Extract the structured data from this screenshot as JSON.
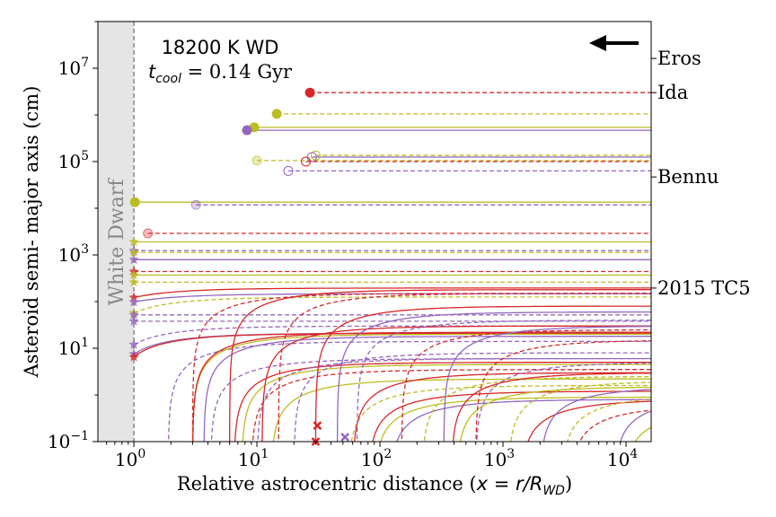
{
  "chart_data": {
    "type": "line",
    "title_line1": "18200 K WD",
    "title_line2_var": "t",
    "title_line2_sub": "cool",
    "title_line2_rest": " = 0.14 Gyr",
    "xlabel_text": "Relative astrocentric distance (",
    "xlabel_math": "x = r/R",
    "xlabel_sub": "WD",
    "xlabel_close": ")",
    "ylabel": "Asteroid semi- major axis  (cm)",
    "xscale": "log",
    "yscale": "log",
    "xlim": [
      0.51,
      16000
    ],
    "ylim": [
      0.1,
      100000000
    ],
    "x_ticks": [
      {
        "exp": "0",
        "v": 1
      },
      {
        "exp": "1",
        "v": 10
      },
      {
        "exp": "2",
        "v": 100
      },
      {
        "exp": "3",
        "v": 1000
      },
      {
        "exp": "4",
        "v": 10000
      }
    ],
    "y_ticks": [
      {
        "exp": "−1",
        "v": 0.1
      },
      {
        "exp": "1",
        "v": 10
      },
      {
        "exp": "3",
        "v": 1000
      },
      {
        "exp": "5",
        "v": 100000
      },
      {
        "exp": "7",
        "v": 10000000
      }
    ],
    "tick_base": "10",
    "shaded_region": {
      "label": "White Dwarf",
      "x_max": 1,
      "color": "#e5e5e5"
    },
    "reference_asteroids": [
      {
        "name": "Eros",
        "a": 16200000
      },
      {
        "name": "Ida",
        "a": 3000000
      },
      {
        "name": "Bennu",
        "a": 46800
      },
      {
        "name": "2015 TC5",
        "a": 195
      }
    ],
    "arrow_direction": "left",
    "colors": {
      "red": "#d62728",
      "olive": "#bcbd22",
      "purple": "#9467bd"
    },
    "flat_series": [
      {
        "color": "red",
        "dash": true,
        "a": 3000000,
        "x0": 27,
        "marker": "filled"
      },
      {
        "color": "olive",
        "dash": true,
        "a": 1050000,
        "x0": 14.5,
        "marker": "filled"
      },
      {
        "color": "olive",
        "dash": false,
        "a": 540000,
        "x0": 9.5,
        "marker": "filled"
      },
      {
        "color": "purple",
        "dash": false,
        "a": 470000,
        "x0": 8.3,
        "marker": "filled"
      },
      {
        "color": "olive",
        "dash": true,
        "a": 135000,
        "x0": 30,
        "marker": "open"
      },
      {
        "color": "purple",
        "dash": false,
        "a": 125000,
        "x0": 28,
        "marker": "open"
      },
      {
        "color": "olive",
        "dash": true,
        "a": 105000,
        "x0": 10,
        "marker": "open-light"
      },
      {
        "color": "red",
        "dash": true,
        "a": 100000,
        "x0": 25,
        "marker": "open"
      },
      {
        "color": "purple",
        "dash": true,
        "a": 63000,
        "x0": 18,
        "marker": "open"
      },
      {
        "color": "olive",
        "dash": false,
        "a": 13500,
        "x0": 1.02,
        "marker": "filled"
      },
      {
        "color": "purple",
        "dash": true,
        "a": 11800,
        "x0": 3.2,
        "marker": "open-light"
      },
      {
        "color": "red",
        "dash": true,
        "a": 2900,
        "x0": 1.3,
        "marker": "open-light"
      },
      {
        "color": "olive",
        "dash": false,
        "a": 1900,
        "x0": 1,
        "marker": "star"
      },
      {
        "color": "purple",
        "dash": true,
        "a": 1230,
        "x0": 1,
        "marker": "star"
      },
      {
        "color": "olive",
        "dash": true,
        "a": 1120,
        "x0": 1,
        "marker": "star"
      },
      {
        "color": "purple",
        "dash": false,
        "a": 790,
        "x0": 1,
        "marker": "star"
      },
      {
        "color": "red",
        "dash": true,
        "a": 440,
        "x0": 1,
        "marker": "star"
      },
      {
        "color": "olive",
        "dash": false,
        "a": 370,
        "x0": 1,
        "marker": "star"
      },
      {
        "color": "olive",
        "dash": true,
        "a": 260,
        "x0": 1,
        "marker": "star"
      },
      {
        "color": "red",
        "dash": false,
        "a": 122,
        "x0": 1,
        "marker": "star",
        "rise": 1.6
      },
      {
        "color": "purple",
        "dash": false,
        "a": 98,
        "x0": 1,
        "marker": "star",
        "rise": 1.5
      },
      {
        "color": "olive",
        "dash": true,
        "a": 57,
        "x0": 1,
        "marker": "star",
        "rise": 2.2
      },
      {
        "color": "purple",
        "dash": true,
        "a": 52,
        "x0": 1,
        "marker": "star"
      },
      {
        "color": "purple",
        "dash": true,
        "a": 38,
        "x0": 1,
        "marker": "star"
      },
      {
        "color": "purple",
        "dash": true,
        "a": 12,
        "x0": 1,
        "marker": "star",
        "rise": 2.5
      },
      {
        "color": "purple",
        "dash": false,
        "a": 7.5,
        "x0": 1,
        "marker": "star",
        "rise": 2.8
      },
      {
        "color": "red",
        "dash": false,
        "a": 6.5,
        "x0": 1,
        "marker": "star",
        "rise": 3.2
      }
    ],
    "rising_series": [
      {
        "color": "purple",
        "dash": true,
        "x0": 1.9,
        "a": 14
      },
      {
        "color": "red",
        "dash": true,
        "x0": 3.0,
        "a": 150
      },
      {
        "color": "olive",
        "dash": false,
        "x0": 3.0,
        "a": 20
      },
      {
        "color": "red",
        "dash": false,
        "x0": 3.0,
        "a": 22
      },
      {
        "color": "purple",
        "dash": false,
        "x0": 3.7,
        "a": 18
      },
      {
        "color": "red",
        "dash": false,
        "x0": 6.0,
        "a": 180
      },
      {
        "color": "purple",
        "dash": true,
        "x0": 4.2,
        "a": 6
      },
      {
        "color": "red",
        "dash": false,
        "x0": 6.5,
        "a": 5
      },
      {
        "color": "olive",
        "dash": false,
        "x0": 7.5,
        "a": 4.5
      },
      {
        "color": "red",
        "dash": true,
        "x0": 9,
        "a": 3.5
      },
      {
        "color": "purple",
        "dash": true,
        "x0": 10,
        "a": 6
      },
      {
        "color": "red",
        "dash": false,
        "x0": 11,
        "a": 30
      },
      {
        "color": "olive",
        "dash": false,
        "x0": 13,
        "a": 2.2
      },
      {
        "color": "red",
        "dash": true,
        "x0": 15,
        "a": 150
      },
      {
        "color": "purple",
        "dash": true,
        "x0": 20,
        "a": 8
      },
      {
        "color": "red",
        "dash": false,
        "x0": 30,
        "a": 80
      },
      {
        "color": "purple",
        "dash": false,
        "x0": 45,
        "a": 60
      },
      {
        "color": "olive",
        "dash": true,
        "x0": 55,
        "a": 1.6
      },
      {
        "color": "red",
        "dash": false,
        "x0": 60,
        "a": 3
      },
      {
        "color": "purple",
        "dash": true,
        "x0": 65,
        "a": 40
      },
      {
        "color": "red",
        "dash": false,
        "x0": 80,
        "a": 1.2
      },
      {
        "color": "olive",
        "dash": false,
        "x0": 90,
        "a": 0.9
      },
      {
        "color": "purple",
        "dash": false,
        "x0": 120,
        "a": 0.8
      },
      {
        "color": "red",
        "dash": true,
        "x0": 150,
        "a": 25
      },
      {
        "color": "olive",
        "dash": true,
        "x0": 220,
        "a": 2.5
      },
      {
        "color": "purple",
        "dash": false,
        "x0": 330,
        "a": 30
      },
      {
        "color": "red",
        "dash": false,
        "x0": 380,
        "a": 3
      },
      {
        "color": "olive",
        "dash": false,
        "x0": 420,
        "a": 1.5
      },
      {
        "color": "purple",
        "dash": true,
        "x0": 600,
        "a": 5
      },
      {
        "color": "red",
        "dash": true,
        "x0": 600,
        "a": 15
      },
      {
        "color": "olive",
        "dash": true,
        "x0": 1100,
        "a": 2
      },
      {
        "color": "red",
        "dash": false,
        "x0": 1400,
        "a": 0.8
      },
      {
        "color": "purple",
        "dash": false,
        "x0": 2000,
        "a": 1.5
      },
      {
        "color": "olive",
        "dash": true,
        "x0": 3000,
        "a": 1.0
      },
      {
        "color": "red",
        "dash": true,
        "x0": 3500,
        "a": 0.6
      },
      {
        "color": "purple",
        "dash": false,
        "x0": 8000,
        "a": 0.9
      },
      {
        "color": "olive",
        "dash": false,
        "x0": 9500,
        "a": 0.5
      },
      {
        "color": "red",
        "dash": false,
        "x0": 12000,
        "a": 0.4
      }
    ],
    "end_markers": [
      {
        "color": "red",
        "x": 31,
        "a": 0.22
      },
      {
        "color": "red",
        "x": 30,
        "a": 0.1
      },
      {
        "color": "purple",
        "x": 52,
        "a": 0.125
      }
    ]
  }
}
